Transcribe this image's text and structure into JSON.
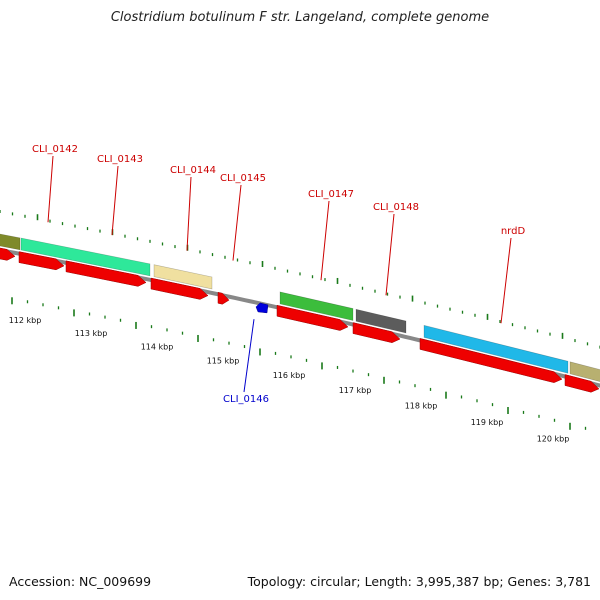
{
  "title": "Clostridium botulinum F str. Langeland, complete genome",
  "footer": {
    "accession": "Accession: NC_009699",
    "summary": "Topology: circular; Length: 3,995,387 bp; Genes: 3,781"
  },
  "colors": {
    "cds_arrow": "#ee0000",
    "backbone": "#888888",
    "tick": "#1a7a1a",
    "label_red": "#cc0000",
    "label_blue": "#0000cc"
  },
  "scale": {
    "labels": [
      "112 kbp",
      "113 kbp",
      "114 kbp",
      "115 kbp",
      "116 kbp",
      "117 kbp",
      "118 kbp",
      "119 kbp",
      "120 kbp"
    ]
  },
  "genes": [
    {
      "label": "CLI_0142",
      "color": "red"
    },
    {
      "label": "CLI_0143",
      "color": "red"
    },
    {
      "label": "CLI_0144",
      "color": "red"
    },
    {
      "label": "CLI_0145",
      "color": "red"
    },
    {
      "label": "CLI_0146",
      "color": "blue"
    },
    {
      "label": "CLI_0147",
      "color": "red"
    },
    {
      "label": "CLI_0148",
      "color": "red"
    },
    {
      "label": "nrdD",
      "color": "red"
    }
  ]
}
